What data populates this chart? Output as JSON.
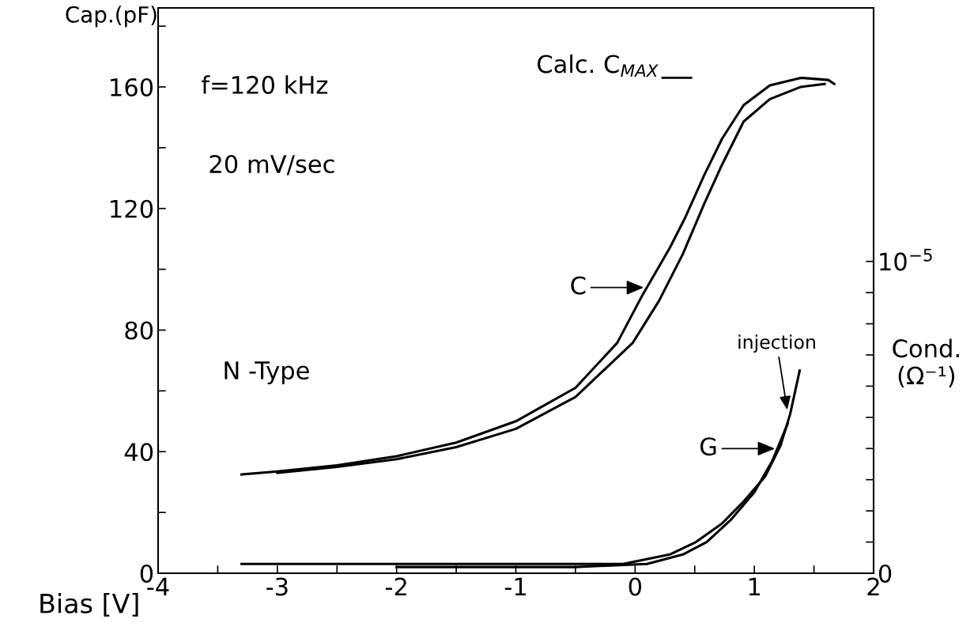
{
  "chart_data": {
    "type": "line",
    "xlabel": "Bias [V]",
    "ylabel": "Cap.(pF)",
    "y2label": "Cond.\n(Ω⁻¹)",
    "xlim": [
      -4,
      2
    ],
    "xticks": [
      -4,
      {
        "value": -3.5,
        "label": null
      },
      -3,
      {
        "value": -2.5,
        "label": null
      },
      -2,
      {
        "value": -1.5,
        "label": null
      },
      -1,
      {
        "value": -0.5,
        "label": null
      },
      0,
      {
        "value": 0.5,
        "label": null
      },
      1,
      {
        "value": 1.5,
        "label": null
      },
      2
    ],
    "ylim": [
      0,
      186
    ],
    "yticks": [
      0,
      {
        "value": 20,
        "label": null
      },
      40,
      {
        "value": 60,
        "label": null
      },
      80,
      {
        "value": 100,
        "label": null
      },
      120,
      {
        "value": 140,
        "label": null
      },
      160,
      {
        "value": 180,
        "label": null
      }
    ],
    "y2lim": [
      0,
      1.813e-05
    ],
    "y2ticks": [
      0,
      {
        "value": 1e-06,
        "label": null
      },
      {
        "value": 2e-06,
        "label": null
      },
      {
        "value": 3e-06,
        "label": null
      },
      {
        "value": 4e-06,
        "label": null
      },
      {
        "value": 5e-06,
        "label": null
      },
      {
        "value": 6e-06,
        "label": null
      },
      {
        "value": 7e-06,
        "label": null
      },
      {
        "value": 8e-06,
        "label": null
      },
      {
        "value": 9e-06,
        "label": null
      },
      {
        "value": 1e-05,
        "label": "10$^{−5}$"
      }
    ],
    "series": [
      {
        "color": "#000000",
        "x": [
          -3.3,
          -3,
          -2.5,
          -2,
          -1.5,
          -1,
          -0.5,
          -0.15,
          0.06,
          0.29,
          0.42,
          0.58,
          0.73,
          0.91,
          1.13,
          1.39,
          1.62,
          1.67
        ],
        "values": [
          32.5,
          33.5,
          35.5,
          38.5,
          43,
          50,
          61,
          75.8,
          91.4,
          107,
          117,
          131,
          143,
          154,
          160.5,
          163,
          162.3,
          161
        ]
      },
      {
        "color": "#000000",
        "x": [
          -3,
          -2.5,
          -2,
          -1.5,
          -1,
          -0.5,
          -0.02,
          0.2,
          0.4,
          0.58,
          0.73,
          0.91,
          1.13,
          1.39,
          1.59
        ],
        "values": [
          33,
          35,
          37.5,
          41.5,
          47.5,
          58,
          75.8,
          89.6,
          105,
          121.6,
          134.5,
          148.6,
          156,
          160,
          161
        ]
      },
      {
        "color": "#000000",
        "axis": "y2",
        "x": [
          -3.3,
          -2,
          -1,
          -0.1,
          0.29,
          0.51,
          0.73,
          0.91,
          1.09,
          1.22,
          1.3,
          1.38
        ],
        "values": [
          3e-07,
          3e-07,
          3e-07,
          3e-07,
          6e-07,
          1e-06,
          1.6e-06,
          2.3e-06,
          3.1e-06,
          4.1e-06,
          5.1e-06,
          6.5e-06
        ]
      },
      {
        "color": "#000000",
        "axis": "y2",
        "x": [
          -2,
          -0.5,
          0.1,
          0.4,
          0.6,
          0.8,
          1.0,
          1.15,
          1.28
        ],
        "values": [
          2e-07,
          2e-07,
          3e-07,
          6e-07,
          1e-06,
          1.7e-06,
          2.6e-06,
          3.6e-06,
          4.8e-06
        ]
      }
    ],
    "ref_lines": [
      {
        "axis": "y",
        "value": 163,
        "label": "Calc. C$_{MAX}$"
      }
    ],
    "annotations": [
      "f=120 kHz",
      "20 mV/sec",
      "N -Type",
      {
        "text": "C",
        "x": 0.1,
        "y": 94
      },
      {
        "text": "G",
        "x": 1.2,
        "y": 41
      },
      {
        "text": "injection",
        "x": 1.28,
        "y": 52.7
      }
    ]
  }
}
